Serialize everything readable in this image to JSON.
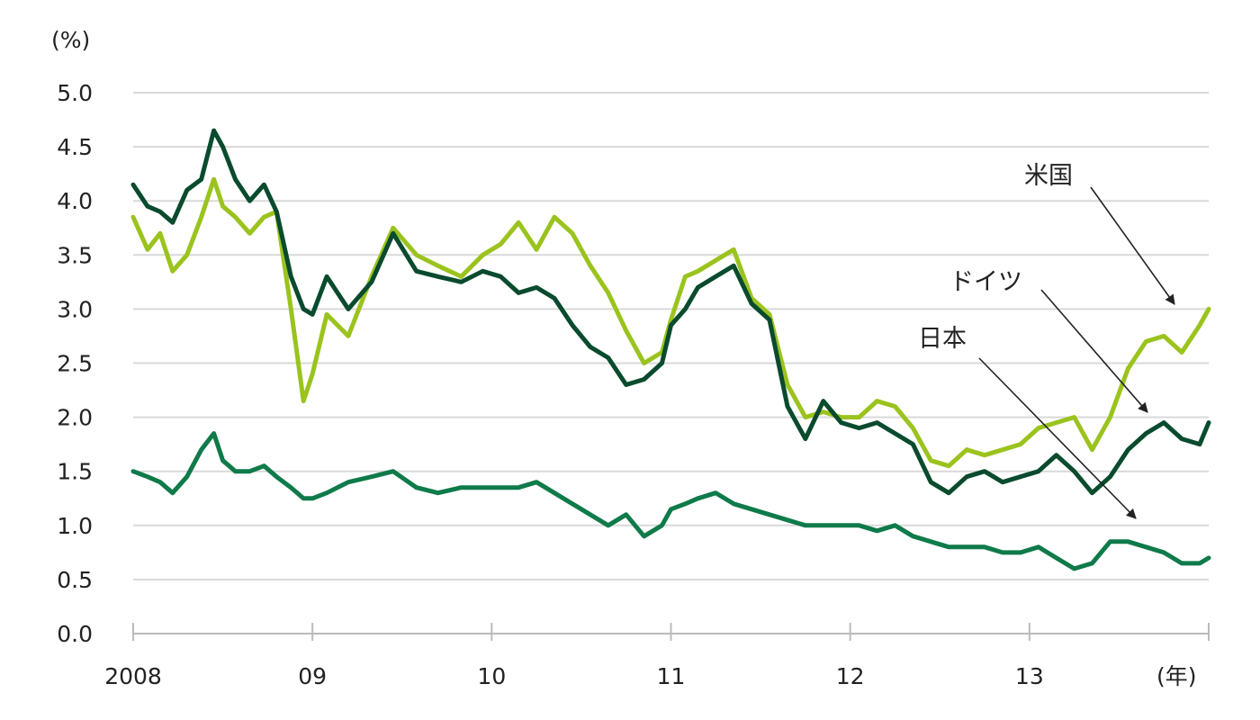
{
  "chart_data": {
    "type": "line",
    "y_unit_label": "(%)",
    "x_unit_label": "(年)",
    "ylim": [
      0.0,
      5.0
    ],
    "y_ticks": [
      "0.0",
      "0.5",
      "1.0",
      "1.5",
      "2.0",
      "2.5",
      "3.0",
      "3.5",
      "4.0",
      "4.5",
      "5.0"
    ],
    "x_range": [
      2008.0,
      2014.0
    ],
    "x_ticks": [
      {
        "value": 2008,
        "label": "2008"
      },
      {
        "value": 2009,
        "label": "09"
      },
      {
        "value": 2010,
        "label": "10"
      },
      {
        "value": 2011,
        "label": "11"
      },
      {
        "value": 2012,
        "label": "12"
      },
      {
        "value": 2013,
        "label": "13"
      }
    ],
    "grid": "horizontal",
    "series": [
      {
        "name": "米国",
        "color": "#9bc31e",
        "x": [
          2008.0,
          2008.08,
          2008.15,
          2008.22,
          2008.3,
          2008.38,
          2008.45,
          2008.5,
          2008.57,
          2008.65,
          2008.73,
          2008.8,
          2008.88,
          2008.95,
          2009.0,
          2009.08,
          2009.2,
          2009.33,
          2009.45,
          2009.58,
          2009.7,
          2009.83,
          2009.95,
          2010.05,
          2010.15,
          2010.25,
          2010.35,
          2010.45,
          2010.55,
          2010.65,
          2010.75,
          2010.85,
          2010.95,
          2011.0,
          2011.08,
          2011.15,
          2011.25,
          2011.35,
          2011.45,
          2011.55,
          2011.65,
          2011.75,
          2011.85,
          2011.95,
          2012.05,
          2012.15,
          2012.25,
          2012.35,
          2012.45,
          2012.55,
          2012.65,
          2012.75,
          2012.85,
          2012.95,
          2013.05,
          2013.15,
          2013.25,
          2013.35,
          2013.45,
          2013.55,
          2013.65,
          2013.75,
          2013.85,
          2013.95,
          2014.0
        ],
        "values": [
          3.85,
          3.55,
          3.7,
          3.35,
          3.5,
          3.85,
          4.2,
          3.95,
          3.85,
          3.7,
          3.85,
          3.9,
          3.0,
          2.15,
          2.4,
          2.95,
          2.75,
          3.3,
          3.75,
          3.5,
          3.4,
          3.3,
          3.5,
          3.6,
          3.8,
          3.55,
          3.85,
          3.7,
          3.4,
          3.15,
          2.8,
          2.5,
          2.6,
          2.9,
          3.3,
          3.35,
          3.45,
          3.55,
          3.1,
          2.95,
          2.3,
          2.0,
          2.05,
          2.0,
          2.0,
          2.15,
          2.1,
          1.9,
          1.6,
          1.55,
          1.7,
          1.65,
          1.7,
          1.75,
          1.9,
          1.95,
          2.0,
          1.7,
          2.0,
          2.45,
          2.7,
          2.75,
          2.6,
          2.85,
          3.0
        ]
      },
      {
        "name": "ドイツ",
        "color": "#0a4b2e",
        "x": [
          2008.0,
          2008.08,
          2008.15,
          2008.22,
          2008.3,
          2008.38,
          2008.45,
          2008.5,
          2008.57,
          2008.65,
          2008.73,
          2008.8,
          2008.88,
          2008.95,
          2009.0,
          2009.08,
          2009.2,
          2009.33,
          2009.45,
          2009.58,
          2009.7,
          2009.83,
          2009.95,
          2010.05,
          2010.15,
          2010.25,
          2010.35,
          2010.45,
          2010.55,
          2010.65,
          2010.75,
          2010.85,
          2010.95,
          2011.0,
          2011.08,
          2011.15,
          2011.25,
          2011.35,
          2011.45,
          2011.55,
          2011.65,
          2011.75,
          2011.85,
          2011.95,
          2012.05,
          2012.15,
          2012.25,
          2012.35,
          2012.45,
          2012.55,
          2012.65,
          2012.75,
          2012.85,
          2012.95,
          2013.05,
          2013.15,
          2013.25,
          2013.35,
          2013.45,
          2013.55,
          2013.65,
          2013.75,
          2013.85,
          2013.95,
          2014.0
        ],
        "values": [
          4.15,
          3.95,
          3.9,
          3.8,
          4.1,
          4.2,
          4.65,
          4.5,
          4.2,
          4.0,
          4.15,
          3.9,
          3.3,
          3.0,
          2.95,
          3.3,
          3.0,
          3.25,
          3.7,
          3.35,
          3.3,
          3.25,
          3.35,
          3.3,
          3.15,
          3.2,
          3.1,
          2.85,
          2.65,
          2.55,
          2.3,
          2.35,
          2.5,
          2.85,
          3.0,
          3.2,
          3.3,
          3.4,
          3.05,
          2.9,
          2.1,
          1.8,
          2.15,
          1.95,
          1.9,
          1.95,
          1.85,
          1.75,
          1.4,
          1.3,
          1.45,
          1.5,
          1.4,
          1.45,
          1.5,
          1.65,
          1.5,
          1.3,
          1.45,
          1.7,
          1.85,
          1.95,
          1.8,
          1.75,
          1.95
        ]
      },
      {
        "name": "日本",
        "color": "#0f7a4a",
        "x": [
          2008.0,
          2008.08,
          2008.15,
          2008.22,
          2008.3,
          2008.38,
          2008.45,
          2008.5,
          2008.57,
          2008.65,
          2008.73,
          2008.8,
          2008.88,
          2008.95,
          2009.0,
          2009.08,
          2009.2,
          2009.33,
          2009.45,
          2009.58,
          2009.7,
          2009.83,
          2009.95,
          2010.05,
          2010.15,
          2010.25,
          2010.35,
          2010.45,
          2010.55,
          2010.65,
          2010.75,
          2010.85,
          2010.95,
          2011.0,
          2011.08,
          2011.15,
          2011.25,
          2011.35,
          2011.45,
          2011.55,
          2011.65,
          2011.75,
          2011.85,
          2011.95,
          2012.05,
          2012.15,
          2012.25,
          2012.35,
          2012.45,
          2012.55,
          2012.65,
          2012.75,
          2012.85,
          2012.95,
          2013.05,
          2013.15,
          2013.25,
          2013.35,
          2013.45,
          2013.55,
          2013.65,
          2013.75,
          2013.85,
          2013.95,
          2014.0
        ],
        "values": [
          1.5,
          1.45,
          1.4,
          1.3,
          1.45,
          1.7,
          1.85,
          1.6,
          1.5,
          1.5,
          1.55,
          1.45,
          1.35,
          1.25,
          1.25,
          1.3,
          1.4,
          1.45,
          1.5,
          1.35,
          1.3,
          1.35,
          1.35,
          1.35,
          1.35,
          1.4,
          1.3,
          1.2,
          1.1,
          1.0,
          1.1,
          0.9,
          1.0,
          1.15,
          1.2,
          1.25,
          1.3,
          1.2,
          1.15,
          1.1,
          1.05,
          1.0,
          1.0,
          1.0,
          1.0,
          0.95,
          1.0,
          0.9,
          0.85,
          0.8,
          0.8,
          0.8,
          0.75,
          0.75,
          0.8,
          0.7,
          0.6,
          0.65,
          0.85,
          0.85,
          0.8,
          0.75,
          0.65,
          0.65,
          0.7
        ]
      }
    ]
  }
}
